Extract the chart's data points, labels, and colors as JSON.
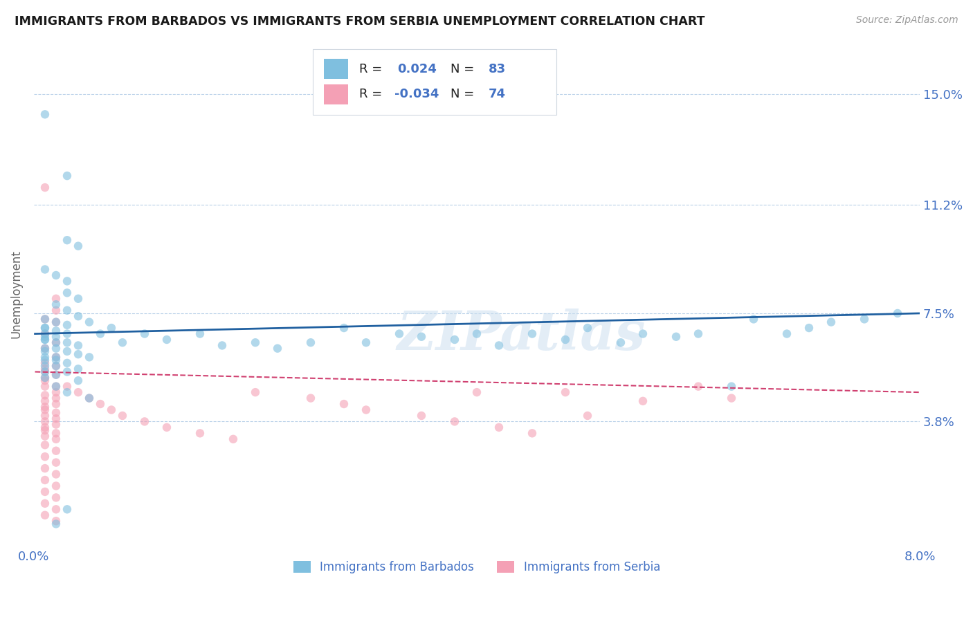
{
  "title": "IMMIGRANTS FROM BARBADOS VS IMMIGRANTS FROM SERBIA UNEMPLOYMENT CORRELATION CHART",
  "source": "Source: ZipAtlas.com",
  "ylabel": "Unemployment",
  "xlim": [
    0.0,
    0.08
  ],
  "ylim": [
    -0.005,
    0.168
  ],
  "ytick_positions": [
    0.038,
    0.075,
    0.112,
    0.15
  ],
  "ytick_labels": [
    "3.8%",
    "7.5%",
    "11.2%",
    "15.0%"
  ],
  "blue_color": "#7fbfdf",
  "pink_color": "#f4a0b5",
  "blue_line_color": "#2060a0",
  "pink_line_color": "#d04070",
  "legend_label_1": "Immigrants from Barbados",
  "legend_label_2": "Immigrants from Serbia",
  "watermark": "ZIPatlas",
  "background_color": "#ffffff",
  "title_color": "#1a1a1a",
  "axis_label_color": "#4472c4",
  "scatter_alpha": 0.6,
  "scatter_size": 80,
  "blue_trend": [
    0.068,
    0.075
  ],
  "pink_trend": [
    0.055,
    0.048
  ],
  "blue_scatter_data": [
    [
      0.001,
      0.143
    ],
    [
      0.003,
      0.122
    ],
    [
      0.003,
      0.1
    ],
    [
      0.004,
      0.098
    ],
    [
      0.001,
      0.09
    ],
    [
      0.002,
      0.088
    ],
    [
      0.003,
      0.086
    ],
    [
      0.003,
      0.082
    ],
    [
      0.004,
      0.08
    ],
    [
      0.002,
      0.078
    ],
    [
      0.003,
      0.076
    ],
    [
      0.004,
      0.074
    ],
    [
      0.001,
      0.073
    ],
    [
      0.005,
      0.072
    ],
    [
      0.002,
      0.072
    ],
    [
      0.003,
      0.071
    ],
    [
      0.001,
      0.07
    ],
    [
      0.001,
      0.07
    ],
    [
      0.002,
      0.069
    ],
    [
      0.001,
      0.068
    ],
    [
      0.003,
      0.068
    ],
    [
      0.001,
      0.067
    ],
    [
      0.002,
      0.067
    ],
    [
      0.001,
      0.066
    ],
    [
      0.001,
      0.066
    ],
    [
      0.002,
      0.065
    ],
    [
      0.003,
      0.065
    ],
    [
      0.004,
      0.064
    ],
    [
      0.001,
      0.063
    ],
    [
      0.002,
      0.063
    ],
    [
      0.001,
      0.062
    ],
    [
      0.003,
      0.062
    ],
    [
      0.004,
      0.061
    ],
    [
      0.001,
      0.06
    ],
    [
      0.002,
      0.06
    ],
    [
      0.005,
      0.06
    ],
    [
      0.001,
      0.059
    ],
    [
      0.002,
      0.059
    ],
    [
      0.003,
      0.058
    ],
    [
      0.001,
      0.057
    ],
    [
      0.002,
      0.057
    ],
    [
      0.004,
      0.056
    ],
    [
      0.001,
      0.055
    ],
    [
      0.003,
      0.055
    ],
    [
      0.002,
      0.054
    ],
    [
      0.001,
      0.053
    ],
    [
      0.004,
      0.052
    ],
    [
      0.002,
      0.05
    ],
    [
      0.003,
      0.048
    ],
    [
      0.005,
      0.046
    ],
    [
      0.006,
      0.068
    ],
    [
      0.007,
      0.07
    ],
    [
      0.008,
      0.065
    ],
    [
      0.01,
      0.068
    ],
    [
      0.012,
      0.066
    ],
    [
      0.015,
      0.068
    ],
    [
      0.017,
      0.064
    ],
    [
      0.02,
      0.065
    ],
    [
      0.022,
      0.063
    ],
    [
      0.025,
      0.065
    ],
    [
      0.028,
      0.07
    ],
    [
      0.03,
      0.065
    ],
    [
      0.033,
      0.068
    ],
    [
      0.035,
      0.067
    ],
    [
      0.038,
      0.066
    ],
    [
      0.04,
      0.068
    ],
    [
      0.042,
      0.064
    ],
    [
      0.045,
      0.068
    ],
    [
      0.048,
      0.066
    ],
    [
      0.05,
      0.07
    ],
    [
      0.053,
      0.065
    ],
    [
      0.055,
      0.068
    ],
    [
      0.058,
      0.067
    ],
    [
      0.06,
      0.068
    ],
    [
      0.063,
      0.05
    ],
    [
      0.065,
      0.073
    ],
    [
      0.068,
      0.068
    ],
    [
      0.07,
      0.07
    ],
    [
      0.072,
      0.072
    ],
    [
      0.075,
      0.073
    ],
    [
      0.078,
      0.075
    ],
    [
      0.002,
      0.003
    ],
    [
      0.003,
      0.008
    ]
  ],
  "serbia_scatter_data": [
    [
      0.001,
      0.118
    ],
    [
      0.002,
      0.08
    ],
    [
      0.002,
      0.076
    ],
    [
      0.001,
      0.073
    ],
    [
      0.002,
      0.072
    ],
    [
      0.001,
      0.068
    ],
    [
      0.002,
      0.065
    ],
    [
      0.001,
      0.063
    ],
    [
      0.002,
      0.06
    ],
    [
      0.001,
      0.058
    ],
    [
      0.002,
      0.057
    ],
    [
      0.001,
      0.056
    ],
    [
      0.001,
      0.055
    ],
    [
      0.002,
      0.054
    ],
    [
      0.001,
      0.053
    ],
    [
      0.001,
      0.052
    ],
    [
      0.002,
      0.05
    ],
    [
      0.001,
      0.05
    ],
    [
      0.002,
      0.048
    ],
    [
      0.001,
      0.047
    ],
    [
      0.002,
      0.046
    ],
    [
      0.001,
      0.045
    ],
    [
      0.002,
      0.044
    ],
    [
      0.001,
      0.043
    ],
    [
      0.001,
      0.042
    ],
    [
      0.002,
      0.041
    ],
    [
      0.001,
      0.04
    ],
    [
      0.002,
      0.039
    ],
    [
      0.001,
      0.038
    ],
    [
      0.002,
      0.037
    ],
    [
      0.001,
      0.036
    ],
    [
      0.001,
      0.035
    ],
    [
      0.002,
      0.034
    ],
    [
      0.001,
      0.033
    ],
    [
      0.002,
      0.032
    ],
    [
      0.001,
      0.03
    ],
    [
      0.002,
      0.028
    ],
    [
      0.001,
      0.026
    ],
    [
      0.002,
      0.024
    ],
    [
      0.001,
      0.022
    ],
    [
      0.002,
      0.02
    ],
    [
      0.001,
      0.018
    ],
    [
      0.002,
      0.016
    ],
    [
      0.001,
      0.014
    ],
    [
      0.002,
      0.012
    ],
    [
      0.001,
      0.01
    ],
    [
      0.002,
      0.008
    ],
    [
      0.001,
      0.006
    ],
    [
      0.002,
      0.004
    ],
    [
      0.003,
      0.05
    ],
    [
      0.004,
      0.048
    ],
    [
      0.005,
      0.046
    ],
    [
      0.006,
      0.044
    ],
    [
      0.007,
      0.042
    ],
    [
      0.008,
      0.04
    ],
    [
      0.01,
      0.038
    ],
    [
      0.012,
      0.036
    ],
    [
      0.015,
      0.034
    ],
    [
      0.018,
      0.032
    ],
    [
      0.02,
      0.048
    ],
    [
      0.025,
      0.046
    ],
    [
      0.028,
      0.044
    ],
    [
      0.03,
      0.042
    ],
    [
      0.035,
      0.04
    ],
    [
      0.038,
      0.038
    ],
    [
      0.04,
      0.048
    ],
    [
      0.042,
      0.036
    ],
    [
      0.045,
      0.034
    ],
    [
      0.048,
      0.048
    ],
    [
      0.05,
      0.04
    ],
    [
      0.055,
      0.045
    ],
    [
      0.06,
      0.05
    ],
    [
      0.063,
      0.046
    ]
  ]
}
